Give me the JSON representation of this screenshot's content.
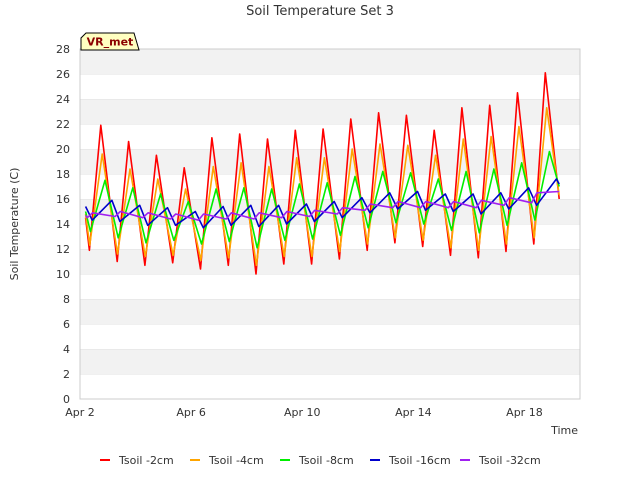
{
  "chart_data": {
    "type": "line",
    "title": "Soil Temperature Set 3",
    "xlabel": "Time",
    "ylabel": "Soil Temperature (C)",
    "badge": "VR_met",
    "x_ticks": [
      {
        "label": "Apr 2",
        "day": 2
      },
      {
        "label": "Apr 6",
        "day": 6
      },
      {
        "label": "Apr 10",
        "day": 10
      },
      {
        "label": "Apr 14",
        "day": 14
      },
      {
        "label": "Apr 18",
        "day": 18
      }
    ],
    "xlim": [
      2,
      20
    ],
    "ylim": [
      0,
      28
    ],
    "y_ticks": [
      0,
      2,
      4,
      6,
      8,
      10,
      12,
      14,
      16,
      18,
      20,
      22,
      24,
      26,
      28
    ],
    "grid": "horizontal bands",
    "legend_position": "bottom",
    "cycle_start_day": 2.2,
    "series": [
      {
        "name": "Tsoil -2cm",
        "color": "#ff0000",
        "daily_min": [
          11.9,
          11.0,
          10.7,
          10.9,
          10.4,
          10.7,
          10.0,
          10.8,
          10.8,
          11.2,
          11.9,
          12.5,
          12.2,
          11.5,
          11.3,
          11.8,
          12.4
        ],
        "daily_max": [
          21.9,
          20.6,
          19.5,
          18.5,
          20.9,
          21.2,
          20.8,
          21.5,
          21.6,
          22.4,
          22.9,
          22.7,
          21.5,
          23.3,
          23.5,
          24.5,
          26.1
        ],
        "phase_max": 0.55,
        "start": 14.5,
        "end": 16.0
      },
      {
        "name": "Tsoil -4cm",
        "color": "#ffa500",
        "daily_min": [
          12.3,
          11.6,
          11.4,
          11.5,
          11.1,
          11.3,
          10.7,
          11.4,
          11.4,
          11.8,
          12.4,
          12.9,
          12.7,
          12.1,
          11.9,
          12.4,
          12.9
        ],
        "daily_max": [
          19.6,
          18.4,
          17.6,
          16.8,
          18.6,
          18.9,
          18.6,
          19.3,
          19.3,
          20.0,
          20.4,
          20.3,
          19.5,
          20.8,
          21.0,
          21.8,
          23.3
        ],
        "phase_max": 0.6,
        "start": 14.8,
        "end": 16.3
      },
      {
        "name": "Tsoil -8cm",
        "color": "#00ee00",
        "daily_min": [
          13.4,
          12.9,
          12.5,
          12.7,
          12.4,
          12.6,
          12.1,
          12.7,
          12.8,
          13.1,
          13.7,
          14.1,
          14.0,
          13.5,
          13.3,
          13.9,
          14.3
        ],
        "daily_max": [
          17.5,
          16.9,
          16.4,
          15.8,
          16.8,
          16.9,
          16.8,
          17.2,
          17.3,
          17.8,
          18.2,
          18.1,
          17.6,
          18.2,
          18.4,
          18.9,
          19.8
        ],
        "phase_max": 0.7,
        "start": 15.0,
        "end": 17.0
      },
      {
        "name": "Tsoil -16cm",
        "color": "#0000cc",
        "daily_min": [
          14.3,
          14.2,
          13.9,
          13.9,
          13.7,
          13.9,
          13.8,
          14.0,
          14.2,
          14.5,
          14.9,
          15.2,
          15.1,
          15.0,
          14.8,
          15.2,
          15.5
        ],
        "daily_max": [
          15.9,
          15.5,
          15.3,
          15.0,
          15.4,
          15.5,
          15.5,
          15.6,
          15.8,
          16.1,
          16.5,
          16.6,
          16.4,
          16.4,
          16.5,
          16.9,
          17.6
        ],
        "phase_max": 0.95,
        "start": 15.4,
        "end": 17.2
      },
      {
        "name": "Tsoil -32cm",
        "color": "#a020f0",
        "daily_min": [
          14.5,
          14.6,
          14.5,
          14.4,
          14.3,
          14.4,
          14.4,
          14.5,
          14.6,
          14.8,
          15.1,
          15.3,
          15.3,
          15.3,
          15.3,
          15.5,
          15.7
        ],
        "daily_max": [
          14.9,
          15.0,
          14.9,
          14.8,
          14.8,
          14.9,
          14.9,
          15.0,
          15.1,
          15.3,
          15.6,
          15.8,
          15.8,
          15.8,
          15.9,
          16.1,
          16.5
        ],
        "phase_max": 0.25,
        "start": 14.7,
        "end": 16.6
      }
    ]
  }
}
